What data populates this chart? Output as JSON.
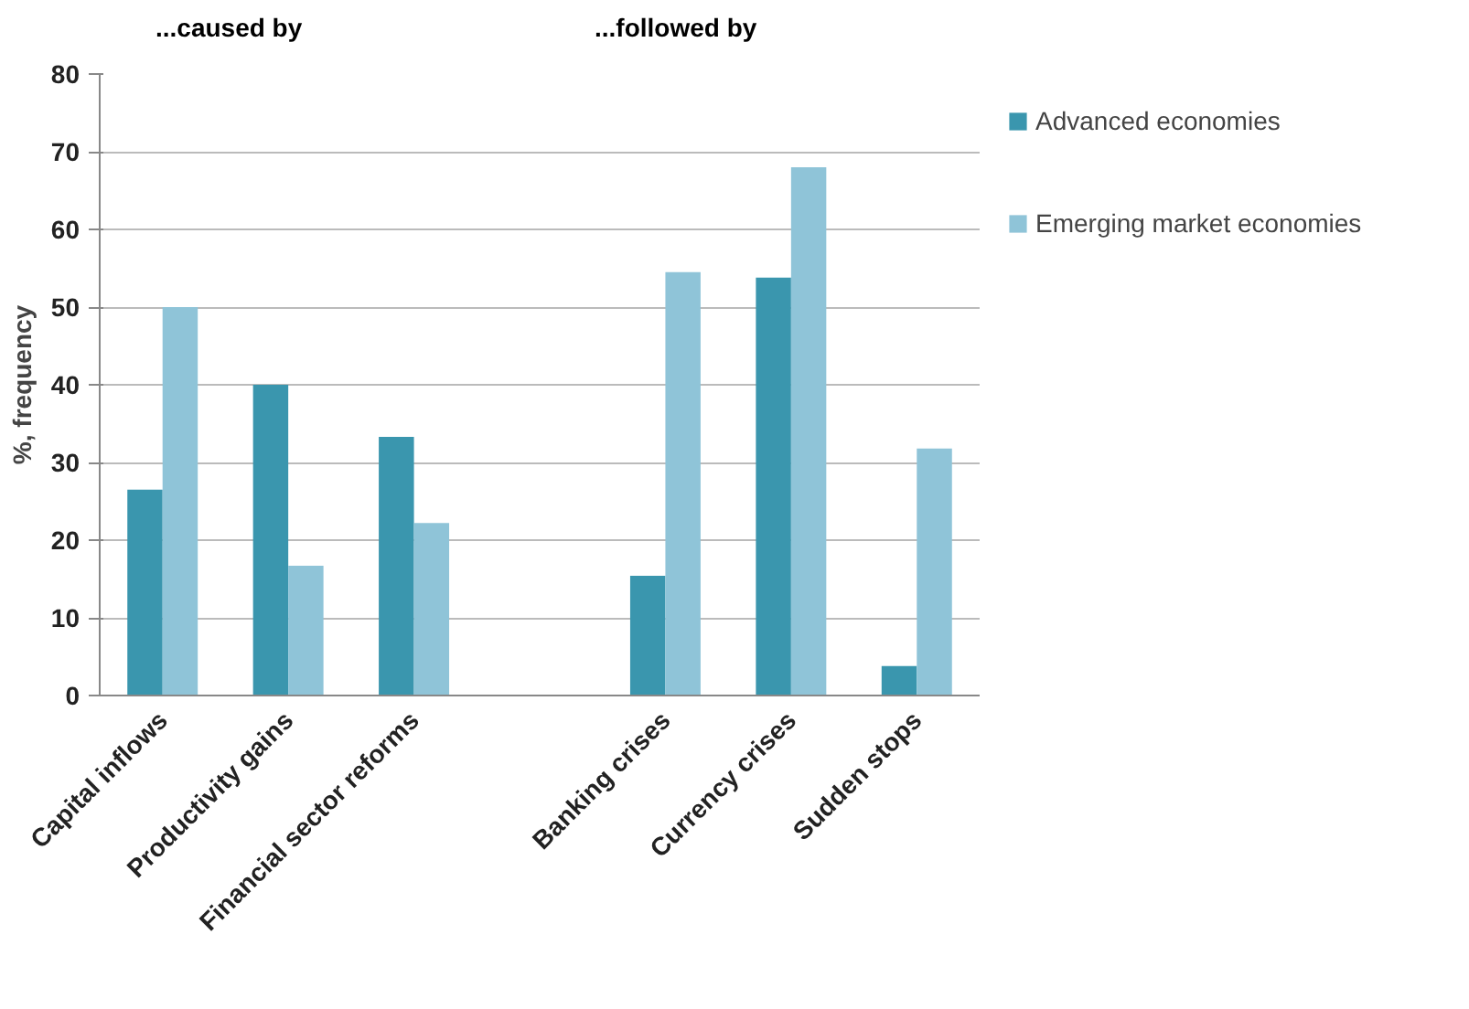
{
  "chart_data": {
    "type": "bar",
    "ylabel": "%, frequency",
    "categories": [
      "Capital inflows",
      "Productivity gains",
      "Financial sector reforms",
      null,
      "Banking crises",
      "Currency crises",
      "Sudden stops"
    ],
    "series": [
      {
        "name": "Advanced economies",
        "color": "#3a96ae",
        "values": [
          26.5,
          40,
          33.3,
          null,
          15.4,
          53.8,
          3.8
        ]
      },
      {
        "name": "Emerging market economies",
        "color": "#8fc4d8",
        "values": [
          50,
          16.7,
          22.2,
          null,
          54.5,
          68,
          31.8
        ]
      }
    ],
    "annotations": [
      "...caused by",
      "...followed by"
    ],
    "ylim": [
      0,
      80
    ],
    "yticks": [
      0,
      10,
      20,
      30,
      40,
      50,
      60,
      70,
      80
    ],
    "grid": "y",
    "legend": "right"
  }
}
